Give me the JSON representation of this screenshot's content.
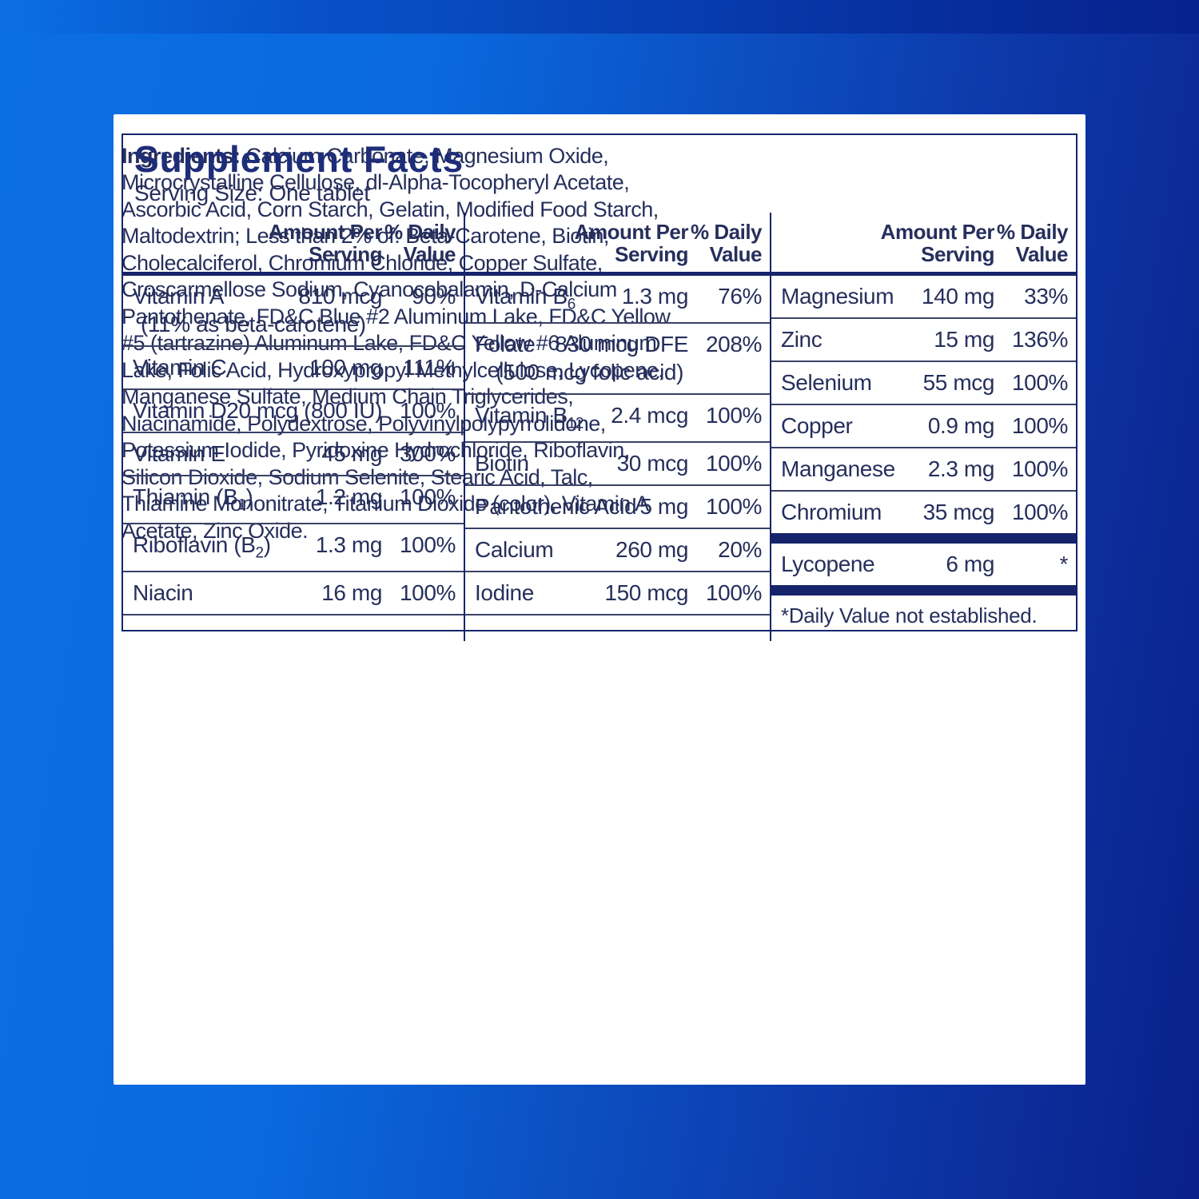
{
  "colors": {
    "background_light": "#0a6fe3",
    "background_dark": "#0a2089",
    "label_navy": "#16246b",
    "text_navy": "#262f5c",
    "card_white": "#ffffff"
  },
  "label": {
    "title": "Supplement Facts",
    "serving_size": "Serving Size: One tablet",
    "column_headers": {
      "amount": "Amount Per Serving",
      "daily_value": "% Daily Value"
    },
    "columns": [
      {
        "rows": [
          {
            "name": "Vitamin A",
            "amount": "810 mcg",
            "dv": "90%",
            "sub": "(11% as beta-carotene)",
            "sub_align": "left"
          },
          {
            "name": "Vitamin C",
            "amount": "100 mg",
            "dv": "111%"
          },
          {
            "name": "Vitamin D",
            "amount": "20 mcg (800 IU)",
            "dv": "100%"
          },
          {
            "name": "Vitamin E",
            "amount": "45 mg",
            "dv": "300%"
          },
          {
            "name": "Thiamin (B",
            "name_sub": "1",
            "name_suffix": ")",
            "amount": "1.2 mg",
            "dv": "100%"
          },
          {
            "name": "Riboflavin (B",
            "name_sub": "2",
            "name_suffix": ")",
            "amount": "1.3 mg",
            "dv": "100%"
          },
          {
            "name": "Niacin",
            "amount": "16 mg",
            "dv": "100%"
          }
        ]
      },
      {
        "rows": [
          {
            "name": "Vitamin B",
            "name_sub": "6",
            "amount": "1.3 mg",
            "dv": "76%"
          },
          {
            "name": "Folate",
            "amount": "830 mcg DFE",
            "dv": "208%",
            "sub": "(500 mcg folic acid)",
            "sub_align": "amount"
          },
          {
            "name": "Vitamin B",
            "name_sub": "12",
            "amount": "2.4 mcg",
            "dv": "100%"
          },
          {
            "name": "Biotin",
            "amount": "30 mcg",
            "dv": "100%"
          },
          {
            "name": "Pantothenic Acid",
            "amount": "5 mg",
            "dv": "100%"
          },
          {
            "name": "Calcium",
            "amount": "260 mg",
            "dv": "20%"
          },
          {
            "name": "Iodine",
            "amount": "150 mcg",
            "dv": "100%"
          }
        ]
      },
      {
        "rows": [
          {
            "name": "Magnesium",
            "amount": "140 mg",
            "dv": "33%"
          },
          {
            "name": "Zinc",
            "amount": "15 mg",
            "dv": "136%"
          },
          {
            "name": "Selenium",
            "amount": "55 mcg",
            "dv": "100%"
          },
          {
            "name": "Copper",
            "amount": "0.9 mg",
            "dv": "100%"
          },
          {
            "name": "Manganese",
            "amount": "2.3 mg",
            "dv": "100%"
          },
          {
            "name": "Chromium",
            "amount": "35 mcg",
            "dv": "100%",
            "no_sep": true
          },
          {
            "name": "Lycopene",
            "amount": "6 mg",
            "dv": "*",
            "no_sep": true,
            "bar_before": true,
            "bar_after": true
          }
        ],
        "footnote": "*Daily Value not established."
      }
    ],
    "ingredients_label": "Ingredients:",
    "ingredients_text": "Calcium Carbonate, Magnesium Oxide, Microcrystalline Cellulose, dl-Alpha-Tocopheryl Acetate, Ascorbic Acid, Corn Starch, Gelatin, Modified Food Starch, Maltodextrin; Less than 2% of: Beta-Carotene, Biotin, Cholecalciferol, Chromium Chloride, Copper Sulfate, Croscarmellose Sodium, Cyanocobalamin, D-Calcium Pantothenate, FD&C Blue #2 Aluminum Lake, FD&C Yellow #5 (tartrazine) Aluminum Lake, FD&C Yellow #6 Aluminum Lake, Folic Acid, Hydroxypropyl Methylcellulose, Lycopene, Manganese Sulfate, Medium Chain Triglycerides, Niacinamide, Polydextrose, Polyvinylpolypyrrolidone, Potassium Iodide, Pyridoxine Hydrochloride, Riboflavin, Silicon Dioxide, Sodium Selenite, Stearic Acid, Talc, Thiamine Mononitrate, Titanium Dioxide (color), Vitamin A Acetate, Zinc Oxide."
  }
}
